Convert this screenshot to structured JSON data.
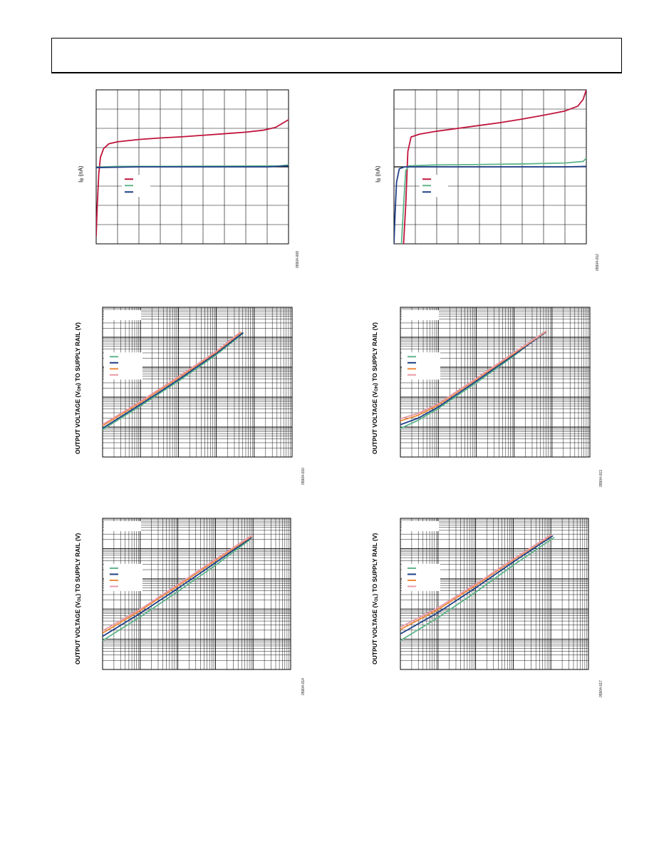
{
  "page": {
    "header_text": ""
  },
  "colors": {
    "red": "#c0143c",
    "green": "#5fb58a",
    "blue": "#1f3f86",
    "orange": "#ef8a3a",
    "pink": "#e89aa8",
    "grid": "#000000"
  },
  "chart_data": [
    {
      "id": "p1",
      "type": "line",
      "ylabel_main": "I",
      "ylabel_sub": "B",
      "ylabel_rest": " (nA)",
      "code": "05904-009",
      "xscale": "linear",
      "yscale": "linear",
      "x_range": [
        0,
        9
      ],
      "y_range": [
        -4,
        4
      ],
      "x_divisions": 9,
      "y_divisions": 8,
      "legend": {
        "placement": "center-left",
        "swatches": [
          "red",
          "green",
          "blue"
        ]
      },
      "series": [
        {
          "color": "red",
          "points": [
            [
              0,
              -3.6
            ],
            [
              0.05,
              -2.0
            ],
            [
              0.12,
              -0.4
            ],
            [
              0.2,
              0.5
            ],
            [
              0.35,
              0.95
            ],
            [
              0.6,
              1.2
            ],
            [
              1,
              1.3
            ],
            [
              2,
              1.42
            ],
            [
              3,
              1.5
            ],
            [
              4,
              1.56
            ],
            [
              5,
              1.64
            ],
            [
              6,
              1.72
            ],
            [
              7,
              1.8
            ],
            [
              7.8,
              1.9
            ],
            [
              8.4,
              2.05
            ],
            [
              9,
              2.45
            ]
          ]
        },
        {
          "color": "green",
          "points": [
            [
              0,
              -0.02
            ],
            [
              1,
              0.02
            ],
            [
              3,
              0.02
            ],
            [
              5,
              0.03
            ],
            [
              7,
              0.04
            ],
            [
              8.6,
              0.05
            ],
            [
              9,
              0.1
            ]
          ]
        },
        {
          "color": "blue",
          "points": [
            [
              0,
              -0.04
            ],
            [
              2,
              0.0
            ],
            [
              5,
              0.0
            ],
            [
              8,
              0.0
            ],
            [
              9,
              0.05
            ]
          ]
        }
      ]
    },
    {
      "id": "p2",
      "type": "line",
      "ylabel_main": "I",
      "ylabel_sub": "B",
      "ylabel_rest": " (nA)",
      "code": "05904-012",
      "xscale": "linear",
      "yscale": "linear",
      "x_range": [
        0,
        9
      ],
      "y_range": [
        -4,
        4
      ],
      "x_divisions": 9,
      "y_divisions": 8,
      "legend": {
        "placement": "center-left",
        "swatches": [
          "red",
          "green",
          "blue"
        ]
      },
      "series": [
        {
          "color": "red",
          "points": [
            [
              0.45,
              -4
            ],
            [
              0.55,
              -2.0
            ],
            [
              0.65,
              0.8
            ],
            [
              0.8,
              1.55
            ],
            [
              1.2,
              1.7
            ],
            [
              2,
              1.85
            ],
            [
              3,
              2.0
            ],
            [
              4,
              2.15
            ],
            [
              5,
              2.3
            ],
            [
              6,
              2.48
            ],
            [
              7,
              2.68
            ],
            [
              8,
              2.9
            ],
            [
              8.6,
              3.15
            ],
            [
              8.85,
              3.5
            ],
            [
              9,
              4.0
            ]
          ]
        },
        {
          "color": "green",
          "points": [
            [
              0.35,
              -4
            ],
            [
              0.45,
              -2.0
            ],
            [
              0.55,
              -0.2
            ],
            [
              0.7,
              0.05
            ],
            [
              2,
              0.1
            ],
            [
              4,
              0.12
            ],
            [
              6,
              0.15
            ],
            [
              8,
              0.2
            ],
            [
              8.85,
              0.28
            ],
            [
              9,
              0.45
            ]
          ]
        },
        {
          "color": "blue",
          "points": [
            [
              0,
              -4
            ],
            [
              0.05,
              -2.5
            ],
            [
              0.12,
              -0.8
            ],
            [
              0.25,
              -0.1
            ],
            [
              0.5,
              0.0
            ],
            [
              2,
              0.0
            ],
            [
              5,
              0.0
            ],
            [
              8,
              0.0
            ],
            [
              9,
              0.02
            ]
          ]
        }
      ]
    },
    {
      "id": "p3",
      "type": "line",
      "ylabel_main": "OUTPUT VOLTAGE (V",
      "ylabel_sub": "OH",
      "ylabel_rest": ") TO SUPPLY RAIL (V)",
      "code": "05904-010",
      "xscale": "log",
      "yscale": "log",
      "x_range": [
        0.001,
        100
      ],
      "y_range": [
        0.0001,
        10
      ],
      "legend": {
        "placement": "center-left",
        "swatches": [
          "green",
          "blue",
          "orange",
          "pink"
        ]
      },
      "series": [
        {
          "color": "green",
          "points": [
            [
              0.001,
              0.00082
            ],
            [
              0.01,
              0.0051
            ],
            [
              0.1,
              0.034
            ],
            [
              1,
              0.26
            ],
            [
              5,
              1.32
            ]
          ]
        },
        {
          "color": "blue",
          "points": [
            [
              0.001,
              0.00092
            ],
            [
              0.01,
              0.0057
            ],
            [
              0.1,
              0.038
            ],
            [
              1,
              0.29
            ],
            [
              5,
              1.4
            ]
          ]
        },
        {
          "color": "orange",
          "points": [
            [
              0.001,
              0.0011
            ],
            [
              0.01,
              0.0066
            ],
            [
              0.1,
              0.044
            ],
            [
              1,
              0.32
            ],
            [
              4.5,
              1.45
            ]
          ]
        },
        {
          "color": "pink",
          "points": [
            [
              0.001,
              0.00122
            ],
            [
              0.01,
              0.0072
            ],
            [
              0.1,
              0.048
            ],
            [
              1,
              0.34
            ],
            [
              4.2,
              1.45
            ]
          ]
        }
      ]
    },
    {
      "id": "p4",
      "type": "line",
      "ylabel_main": "OUTPUT VOLTAGE (V",
      "ylabel_sub": "OH",
      "ylabel_rest": ") TO SUPPLY RAIL (V)",
      "code": "05904-013",
      "xscale": "log",
      "yscale": "log",
      "x_range": [
        0.001,
        100
      ],
      "y_range": [
        0.0001,
        10
      ],
      "legend": {
        "placement": "center-left",
        "swatches": [
          "green",
          "blue",
          "orange",
          "pink"
        ]
      },
      "series": [
        {
          "color": "green",
          "points": [
            [
              0.001,
              0.0009
            ],
            [
              0.003,
              0.0017
            ],
            [
              0.01,
              0.0042
            ],
            [
              0.1,
              0.03
            ],
            [
              1,
              0.24
            ],
            [
              6,
              1.45
            ]
          ]
        },
        {
          "color": "blue",
          "points": [
            [
              0.001,
              0.0012
            ],
            [
              0.003,
              0.002
            ],
            [
              0.01,
              0.0047
            ],
            [
              0.1,
              0.034
            ],
            [
              1,
              0.26
            ],
            [
              7,
              1.5
            ]
          ]
        },
        {
          "color": "orange",
          "points": [
            [
              0.001,
              0.0016
            ],
            [
              0.003,
              0.0025
            ],
            [
              0.01,
              0.0055
            ],
            [
              0.1,
              0.039
            ],
            [
              1,
              0.29
            ],
            [
              7,
              1.55
            ]
          ]
        },
        {
          "color": "pink",
          "points": [
            [
              0.001,
              0.0019
            ],
            [
              0.003,
              0.0029
            ],
            [
              0.01,
              0.006
            ],
            [
              0.1,
              0.042
            ],
            [
              1,
              0.31
            ],
            [
              7,
              1.6
            ]
          ]
        }
      ]
    },
    {
      "id": "p5",
      "type": "line",
      "ylabel_main": "OUTPUT VOLTAGE (V",
      "ylabel_sub": "OL",
      "ylabel_rest": ") TO SUPPLY RAIL (V)",
      "code": "05904-014",
      "xscale": "log",
      "yscale": "log",
      "x_range": [
        0.001,
        100
      ],
      "y_range": [
        0.0001,
        10
      ],
      "legend": {
        "placement": "center-left",
        "swatches": [
          "green",
          "blue",
          "orange",
          "pink"
        ]
      },
      "series": [
        {
          "color": "green",
          "points": [
            [
              0.001,
              0.0009
            ],
            [
              0.01,
              0.0055
            ],
            [
              0.1,
              0.038
            ],
            [
              1,
              0.28
            ],
            [
              8,
              1.9
            ]
          ]
        },
        {
          "color": "blue",
          "points": [
            [
              0.001,
              0.00125
            ],
            [
              0.01,
              0.0072
            ],
            [
              0.1,
              0.048
            ],
            [
              1,
              0.34
            ],
            [
              9,
              2.3
            ]
          ]
        },
        {
          "color": "orange",
          "points": [
            [
              0.001,
              0.0016
            ],
            [
              0.01,
              0.0088
            ],
            [
              0.1,
              0.058
            ],
            [
              1,
              0.4
            ],
            [
              9,
              2.5
            ]
          ]
        },
        {
          "color": "pink",
          "points": [
            [
              0.001,
              0.0019
            ],
            [
              0.01,
              0.0098
            ],
            [
              0.1,
              0.064
            ],
            [
              1,
              0.44
            ],
            [
              9,
              2.65
            ]
          ]
        }
      ]
    },
    {
      "id": "p6",
      "type": "line",
      "ylabel_main": "OUTPUT VOLTAGE (V",
      "ylabel_sub": "OL",
      "ylabel_rest": ") TO SUPPLY RAIL (V)",
      "code": "05904-017",
      "xscale": "log",
      "yscale": "log",
      "x_range": [
        0.001,
        100
      ],
      "y_range": [
        0.0001,
        10
      ],
      "legend": {
        "placement": "center-left",
        "swatches": [
          "green",
          "blue",
          "orange",
          "pink"
        ]
      },
      "series": [
        {
          "color": "green",
          "points": [
            [
              0.001,
              0.0009
            ],
            [
              0.01,
              0.0052
            ],
            [
              0.1,
              0.036
            ],
            [
              1,
              0.28
            ],
            [
              12,
              2.3
            ]
          ]
        },
        {
          "color": "blue",
          "points": [
            [
              0.001,
              0.0015
            ],
            [
              0.01,
              0.0076
            ],
            [
              0.1,
              0.05
            ],
            [
              1,
              0.36
            ],
            [
              11,
              2.6
            ]
          ]
        },
        {
          "color": "orange",
          "points": [
            [
              0.001,
              0.0021
            ],
            [
              0.01,
              0.0096
            ],
            [
              0.1,
              0.06
            ],
            [
              1,
              0.42
            ],
            [
              10,
              2.7
            ]
          ]
        },
        {
          "color": "pink",
          "points": [
            [
              0.001,
              0.0025
            ],
            [
              0.01,
              0.011
            ],
            [
              0.1,
              0.066
            ],
            [
              1,
              0.45
            ],
            [
              10,
              2.8
            ]
          ]
        }
      ]
    }
  ]
}
